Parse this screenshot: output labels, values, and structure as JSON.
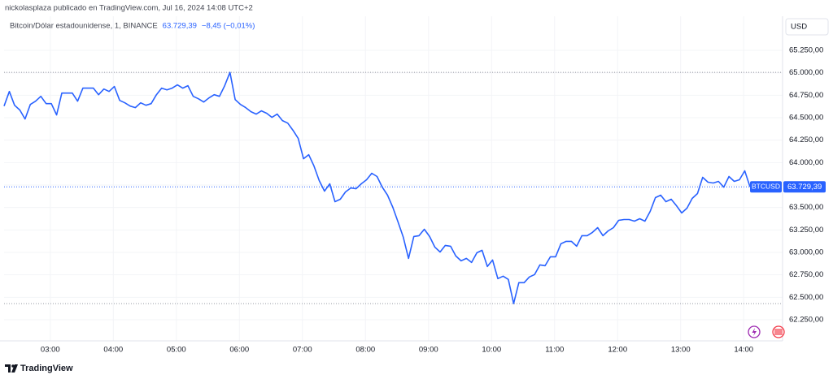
{
  "header": "nickolasplaza publicado en TradingView.com, Jul 16, 2024 14:08 UTC+2",
  "footer": "TradingView",
  "chart_data": {
    "type": "line",
    "title": "Bitcoin/Dólar estadounidense, 1, BINANCE",
    "last_value_label": "63.729,39",
    "change": "−8,45 (−0,01%)",
    "currency": "USD",
    "symbol": "BTCUSD",
    "grid": true,
    "x": [
      "02:16",
      "02:21",
      "02:26",
      "02:31",
      "02:36",
      "02:41",
      "02:46",
      "02:51",
      "02:56",
      "03:01",
      "03:06",
      "03:11",
      "03:16",
      "03:21",
      "03:26",
      "03:31",
      "03:36",
      "03:41",
      "03:46",
      "03:51",
      "03:56",
      "04:01",
      "04:06",
      "04:11",
      "04:16",
      "04:21",
      "04:26",
      "04:31",
      "04:36",
      "04:41",
      "04:46",
      "04:51",
      "04:56",
      "05:01",
      "05:06",
      "05:11",
      "05:16",
      "05:21",
      "05:26",
      "05:31",
      "05:36",
      "05:41",
      "05:46",
      "05:51",
      "05:56",
      "06:01",
      "06:06",
      "06:11",
      "06:16",
      "06:21",
      "06:26",
      "06:31",
      "06:36",
      "06:41",
      "06:46",
      "06:51",
      "06:56",
      "07:01",
      "07:06",
      "07:11",
      "07:16",
      "07:21",
      "07:26",
      "07:31",
      "07:36",
      "07:41",
      "07:46",
      "07:51",
      "07:56",
      "08:01",
      "08:06",
      "08:11",
      "08:16",
      "08:21",
      "08:26",
      "08:31",
      "08:36",
      "08:41",
      "08:46",
      "08:51",
      "08:56",
      "09:01",
      "09:06",
      "09:11",
      "09:16",
      "09:21",
      "09:26",
      "09:31",
      "09:36",
      "09:41",
      "09:46",
      "09:51",
      "09:56",
      "10:01",
      "10:06",
      "10:11",
      "10:16",
      "10:21",
      "10:26",
      "10:31",
      "10:36",
      "10:41",
      "10:46",
      "10:51",
      "10:56",
      "11:01",
      "11:06",
      "11:11",
      "11:16",
      "11:21",
      "11:26",
      "11:31",
      "11:36",
      "11:41",
      "11:46",
      "11:51",
      "11:56",
      "12:01",
      "12:06",
      "12:11",
      "12:16",
      "12:21",
      "12:26",
      "12:31",
      "12:36",
      "12:41",
      "12:46",
      "12:51",
      "12:56",
      "13:01",
      "13:06",
      "13:11",
      "13:16",
      "13:21",
      "13:26",
      "13:31",
      "13:36",
      "13:41",
      "13:46",
      "13:51",
      "13:56",
      "14:01",
      "14:06"
    ],
    "series": [
      {
        "name": "BTCUSD",
        "color": "#2962ff",
        "values": [
          64630,
          64792,
          64639,
          64585,
          64486,
          64648,
          64684,
          64738,
          64657,
          64657,
          64531,
          64774,
          64774,
          64774,
          64684,
          64829,
          64829,
          64829,
          64756,
          64819,
          64792,
          64847,
          64693,
          64666,
          64630,
          64612,
          64666,
          64639,
          64657,
          64756,
          64829,
          64810,
          64829,
          64865,
          64829,
          64856,
          64738,
          64711,
          64675,
          64720,
          64756,
          64738,
          64856,
          65005,
          64702,
          64648,
          64612,
          64567,
          64540,
          64576,
          64549,
          64504,
          64540,
          64468,
          64440,
          64359,
          64269,
          64043,
          64088,
          63962,
          63800,
          63682,
          63764,
          63565,
          63592,
          63673,
          63718,
          63709,
          63764,
          63809,
          63881,
          63845,
          63727,
          63637,
          63502,
          63339,
          63168,
          62933,
          63177,
          63186,
          63258,
          63177,
          63060,
          63005,
          63078,
          63069,
          62960,
          62906,
          62933,
          62888,
          62996,
          63024,
          62843,
          62915,
          62708,
          62735,
          62699,
          62430,
          62663,
          62663,
          62726,
          62753,
          62861,
          62852,
          62951,
          62951,
          63096,
          63123,
          63123,
          63069,
          63186,
          63186,
          63222,
          63276,
          63186,
          63240,
          63276,
          63357,
          63366,
          63366,
          63348,
          63375,
          63348,
          63457,
          63610,
          63637,
          63565,
          63592,
          63520,
          63439,
          63493,
          63601,
          63655,
          63836,
          63782,
          63773,
          63791,
          63727,
          63845,
          63791,
          63809,
          63908,
          63729.39
        ]
      }
    ],
    "xlim": [
      "02:16",
      "14:37"
    ],
    "xticks": [
      "03:00",
      "04:00",
      "05:00",
      "06:00",
      "07:00",
      "08:00",
      "09:00",
      "10:00",
      "11:00",
      "12:00",
      "13:00",
      "14:00"
    ],
    "ylim": [
      62015,
      65630
    ],
    "yticks": [
      {
        "value": 62250,
        "label": "62.250,00"
      },
      {
        "value": 62500,
        "label": "62.500,00"
      },
      {
        "value": 62750,
        "label": "62.750,00"
      },
      {
        "value": 63000,
        "label": "63.000,00"
      },
      {
        "value": 63250,
        "label": "63.250,00"
      },
      {
        "value": 63500,
        "label": "63.500,00"
      },
      {
        "value": 63750,
        "label": "63.750,00"
      },
      {
        "value": 64000,
        "label": "64.000,00"
      },
      {
        "value": 64250,
        "label": "64.250,00"
      },
      {
        "value": 64500,
        "label": "64.500,00"
      },
      {
        "value": 64750,
        "label": "64.750,00"
      },
      {
        "value": 65000,
        "label": "65.000,00"
      },
      {
        "value": 65250,
        "label": "65.250,00"
      }
    ]
  }
}
